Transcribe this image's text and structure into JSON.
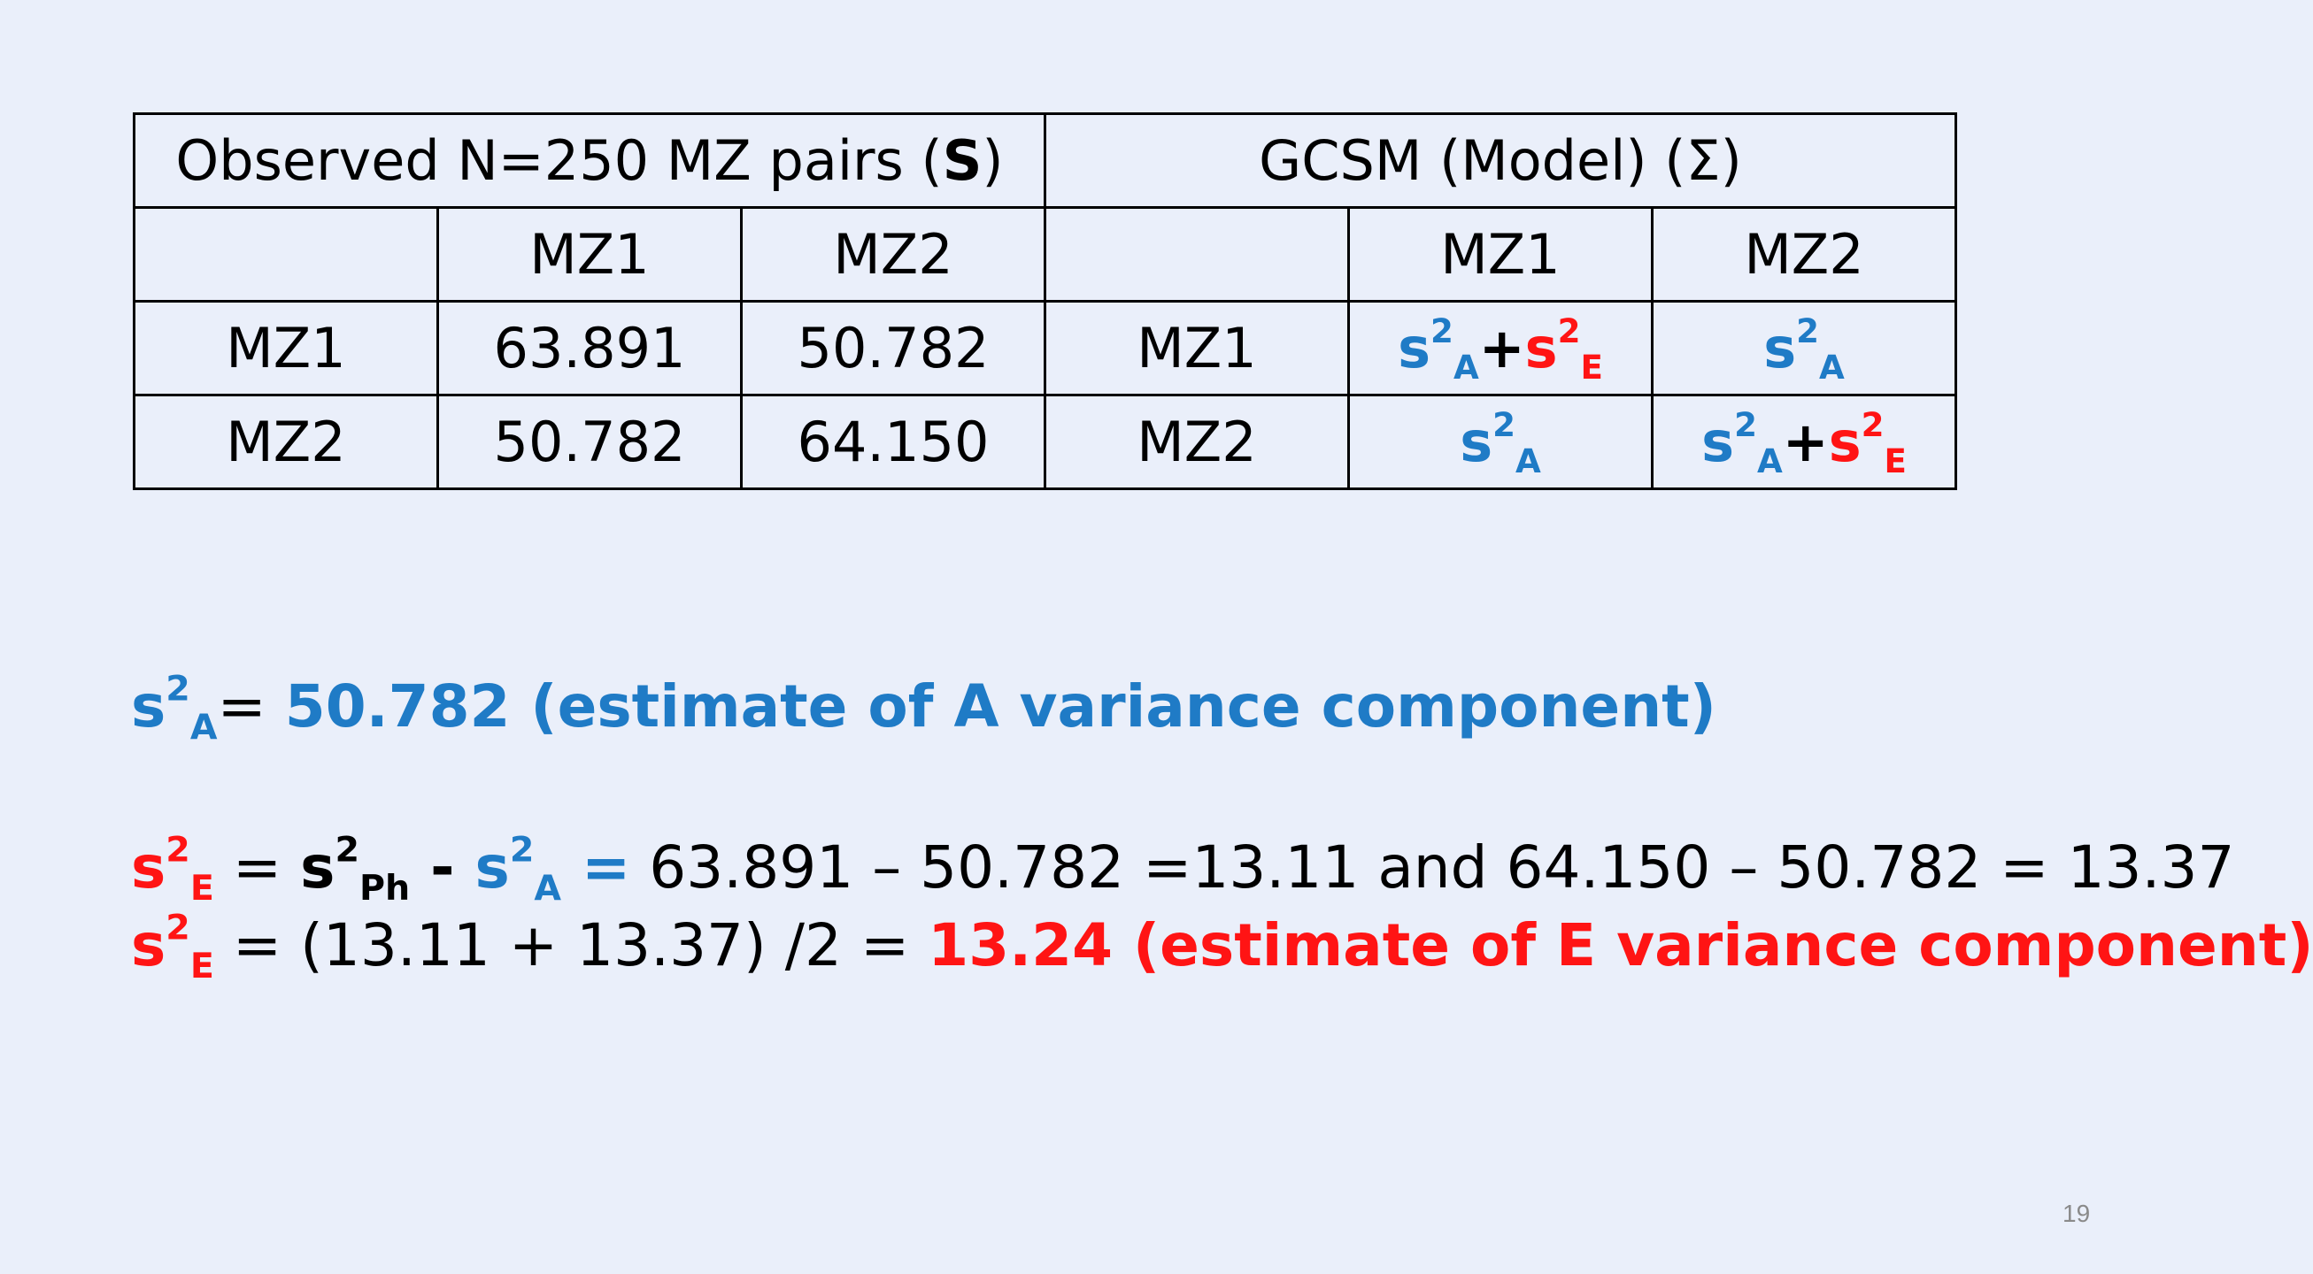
{
  "table": {
    "observed_header": "Observed N=250 MZ pairs (",
    "observed_symbol": "S",
    "observed_close": ")",
    "model_header": "GCSM (Model) (Σ)",
    "col_blank": "",
    "col_mz1": "MZ1",
    "col_mz2": "MZ2",
    "row1_label": "MZ1",
    "row2_label": "MZ2",
    "obs": [
      [
        "63.891",
        "50.782"
      ],
      [
        "50.782",
        "64.150"
      ]
    ],
    "model": {
      "s": "s",
      "two": "2",
      "A": "A",
      "E": "E",
      "plus": "+"
    }
  },
  "text": {
    "s": "s",
    "two": "2",
    "A": "A",
    "E": "E",
    "Ph": "Ph",
    "line1_rest": "= ",
    "line1_value": "50.782 (estimate of A variance component)",
    "line2_eq": " = ",
    "line2_minus": " - ",
    "line2_eq2": "  =",
    "line2_rest": " 63.891 – 50.782 =13.11 and 64.150 – 50.782 = 13.37",
    "line3_rest": " = (13.11 + 13.37) /2 = ",
    "line3_value": "13.24 (estimate of E variance component)"
  },
  "page_number": "19",
  "colors": {
    "background": "#eaeffa",
    "blue": "#1f7bc6",
    "red": "#ff1414"
  }
}
